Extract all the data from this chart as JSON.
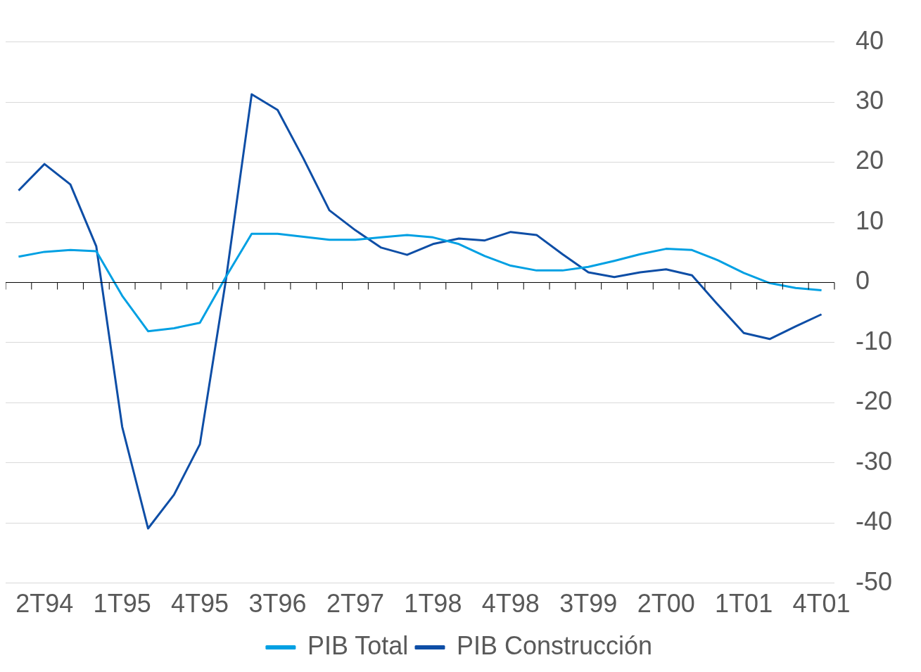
{
  "chart_data": {
    "type": "line",
    "categories": [
      null,
      "2T94",
      null,
      null,
      "1T95",
      null,
      null,
      "4T95",
      null,
      null,
      "3T96",
      null,
      null,
      "2T97",
      null,
      null,
      "1T98",
      null,
      null,
      "4T98",
      null,
      null,
      "3T99",
      null,
      null,
      "2T00",
      null,
      null,
      "1T01",
      null,
      null,
      "4T01"
    ],
    "series": [
      {
        "name": "PIB Total",
        "color": "#00a0e3",
        "values": [
          4.3,
          5.1,
          5.4,
          5.2,
          -2.2,
          -8.1,
          -7.6,
          -6.7,
          0.9,
          8.1,
          8.1,
          7.6,
          7.1,
          7.1,
          7.5,
          7.9,
          7.5,
          6.4,
          4.4,
          2.8,
          2.0,
          2.0,
          2.6,
          3.6,
          4.7,
          5.6,
          5.4,
          3.7,
          1.6,
          -0.1,
          -0.9,
          -1.3
        ]
      },
      {
        "name": "PIB Construcción",
        "color": "#0e4ea6",
        "values": [
          15.3,
          19.7,
          16.3,
          6.0,
          -24.0,
          -40.9,
          -35.3,
          -26.9,
          0.3,
          31.3,
          28.7,
          20.6,
          12.0,
          8.7,
          5.8,
          4.6,
          6.4,
          7.3,
          7.0,
          8.4,
          7.9,
          4.7,
          1.7,
          0.9,
          1.7,
          2.2,
          1.2,
          -3.7,
          -8.4,
          -9.4,
          -7.3,
          -5.3
        ]
      }
    ],
    "ylim": [
      -50,
      40
    ],
    "yticks": [
      -50,
      -40,
      -30,
      -20,
      -10,
      0,
      10,
      20,
      30,
      40
    ],
    "grid": "y",
    "legend": "bottom",
    "marker": "none",
    "line_style": "solid"
  }
}
